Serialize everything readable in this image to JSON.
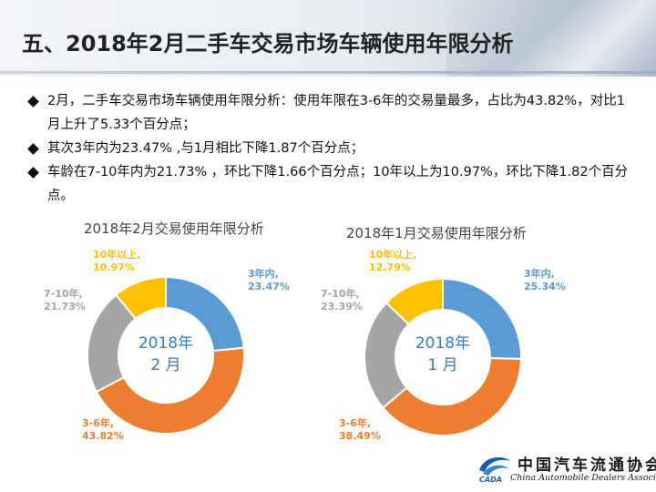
{
  "header": {
    "title": "五、2018年2月二手车交易市场车辆使用年限分析"
  },
  "bullets": [
    "2月，二手车交易市场车辆使用年限分析：使用年限在3-6年的交易量最多，占比为43.82%，对比1月上升了5.33个百分点；",
    "其次3年内为23.47% ,与1月相比下降1.87个百分点；",
    "车龄在7-10年内为21.73% ，环比下降1.66个百分点；10年以上为10.97%，环比下降1.82个百分点。"
  ],
  "colors": {
    "blue": "#5b9bd5",
    "orange": "#ed7d31",
    "gray": "#a5a5a5",
    "yellow": "#ffc000",
    "center_text": "#3a7abf"
  },
  "chart_data": [
    {
      "type": "pie",
      "title": "2018年2月交易使用年限分析",
      "center_label": [
        "2018年",
        "2 月"
      ],
      "categories": [
        "3年内",
        "3-6年",
        "7-10年",
        "10年以上"
      ],
      "values": [
        23.47,
        43.82,
        21.73,
        10.97
      ],
      "data_labels": [
        [
          "3年内,",
          "23.47%"
        ],
        [
          "3-6年,",
          "43.82%"
        ],
        [
          "7-10年,",
          "21.73%"
        ],
        [
          "10年以上,",
          "10.97%"
        ]
      ]
    },
    {
      "type": "pie",
      "title": "2018年1月交易使用年限分析",
      "center_label": [
        "2018年",
        "1 月"
      ],
      "categories": [
        "3年内",
        "3-6年",
        "7-10年",
        "10年以上"
      ],
      "values": [
        25.34,
        38.49,
        23.39,
        12.79
      ],
      "data_labels": [
        [
          "3年内,",
          "25.34%"
        ],
        [
          "3-6年,",
          "38.49%"
        ],
        [
          "7-10年,",
          "23.39%"
        ],
        [
          "10年以上,",
          "12.79%"
        ]
      ]
    }
  ],
  "logo": {
    "name_cn": "中国汽车流通协会",
    "name_en": "China Automobile Dealers Association",
    "abbr": "CADA"
  }
}
